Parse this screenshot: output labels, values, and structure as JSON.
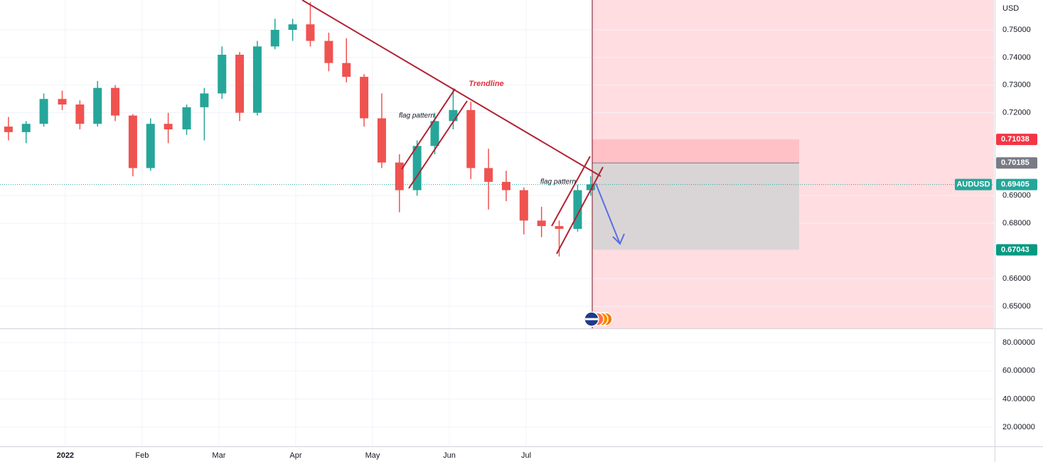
{
  "chart_data": {
    "type": "candlestick",
    "unit": "USD",
    "symbol": "AUDUSD",
    "up_color": "#26a69a",
    "down_color": "#ef5350",
    "grid": true,
    "xlim": [
      0.15,
      13.09
    ],
    "xticks": [
      {
        "value": 1,
        "label": "2022"
      },
      {
        "value": 2,
        "label": "Feb"
      },
      {
        "value": 3,
        "label": "Mar"
      },
      {
        "value": 4,
        "label": "Apr"
      },
      {
        "value": 5,
        "label": "May"
      },
      {
        "value": 6,
        "label": "Jun"
      },
      {
        "value": 7,
        "label": "Jul"
      }
    ],
    "ylim": [
      0.642,
      0.7608
    ],
    "yticks": [
      {
        "value": 0.65,
        "label": "0.65000"
      },
      {
        "value": 0.66,
        "label": "0.66000"
      },
      {
        "value": 0.68,
        "label": "0.68000"
      },
      {
        "value": 0.69,
        "label": "0.69000"
      },
      {
        "value": 0.72,
        "label": "0.72000"
      },
      {
        "value": 0.73,
        "label": "0.73000"
      },
      {
        "value": 0.74,
        "label": "0.74000"
      },
      {
        "value": 0.75,
        "label": "0.75000"
      }
    ],
    "x": [
      0.26,
      0.49,
      0.72,
      0.96,
      1.19,
      1.42,
      1.65,
      1.88,
      2.11,
      2.34,
      2.58,
      2.81,
      3.04,
      3.27,
      3.5,
      3.73,
      3.96,
      4.19,
      4.43,
      4.66,
      4.89,
      5.12,
      5.35,
      5.58,
      5.81,
      6.05,
      6.28,
      6.51,
      6.74,
      6.97,
      7.2,
      7.43,
      7.67,
      7.84
    ],
    "open": [
      0.715,
      0.713,
      0.716,
      0.725,
      0.723,
      0.716,
      0.729,
      0.719,
      0.7,
      0.716,
      0.714,
      0.722,
      0.727,
      0.741,
      0.72,
      0.744,
      0.75,
      0.752,
      0.746,
      0.738,
      0.733,
      0.718,
      0.702,
      0.692,
      0.708,
      0.717,
      0.721,
      0.7,
      0.695,
      0.692,
      0.681,
      0.679,
      0.678,
      0.692
    ],
    "high": [
      0.7185,
      0.717,
      0.727,
      0.728,
      0.7245,
      0.7315,
      0.73,
      0.7195,
      0.718,
      0.72,
      0.723,
      0.729,
      0.744,
      0.742,
      0.746,
      0.754,
      0.754,
      0.76,
      0.749,
      0.747,
      0.734,
      0.727,
      0.705,
      0.71,
      0.72,
      0.729,
      0.724,
      0.707,
      0.699,
      0.693,
      0.686,
      0.681,
      0.694,
      0.697
    ],
    "low": [
      0.71,
      0.709,
      0.715,
      0.721,
      0.714,
      0.715,
      0.717,
      0.697,
      0.699,
      0.709,
      0.712,
      0.71,
      0.725,
      0.717,
      0.719,
      0.743,
      0.746,
      0.744,
      0.735,
      0.731,
      0.715,
      0.7,
      0.684,
      0.69,
      0.705,
      0.714,
      0.696,
      0.685,
      0.688,
      0.676,
      0.675,
      0.668,
      0.677,
      0.69
    ],
    "close": [
      0.713,
      0.716,
      0.725,
      0.723,
      0.716,
      0.729,
      0.719,
      0.7,
      0.716,
      0.714,
      0.722,
      0.727,
      0.741,
      0.72,
      0.744,
      0.75,
      0.752,
      0.746,
      0.738,
      0.733,
      0.718,
      0.702,
      0.692,
      0.708,
      0.717,
      0.721,
      0.7,
      0.695,
      0.692,
      0.681,
      0.679,
      0.678,
      0.692,
      0.6941
    ],
    "last_price": {
      "value": 0.69405,
      "label": "0.69405"
    },
    "position": {
      "stop": {
        "value": 0.71038,
        "label": "0.71038"
      },
      "entry": {
        "value": 0.70185,
        "label": "0.70185"
      },
      "target": {
        "value": 0.67043,
        "label": "0.67043"
      }
    },
    "annotations": [
      "Trendline",
      "flag pattern",
      "flag pattern"
    ],
    "pane2": {
      "ylim": [
        6.4,
        89.6
      ],
      "yticks": [
        {
          "value": 20,
          "label": "20.00000"
        },
        {
          "value": 40,
          "label": "40.00000"
        },
        {
          "value": 60,
          "label": "60.00000"
        },
        {
          "value": 80,
          "label": "80.00000"
        }
      ]
    }
  }
}
